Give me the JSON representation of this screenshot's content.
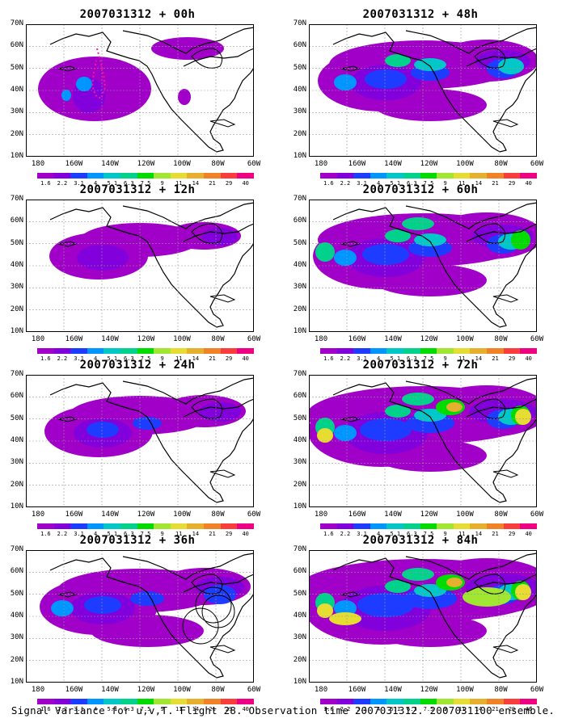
{
  "caption": "Signal Variance for u,v,T. Flight 28. Observation time 2007031312. 2007031100 ensemble.",
  "y_labels": [
    "70N",
    "60N",
    "50N",
    "40N",
    "30N",
    "20N",
    "10N"
  ],
  "x_labels": [
    "180",
    "160W",
    "140W",
    "120W",
    "100W",
    "80W",
    "60W"
  ],
  "colorbar": {
    "labels": [
      "1.6",
      "2.2",
      "3.1",
      "4",
      "5.1",
      "6.3",
      "7.5",
      "9",
      "11",
      "14",
      "21",
      "29",
      "40"
    ],
    "colors": [
      "#a000c8",
      "#8200dc",
      "#1e3cff",
      "#0096ff",
      "#00c8c8",
      "#00d28c",
      "#00dc00",
      "#a0e632",
      "#e6dc32",
      "#e6af2d",
      "#f08228",
      "#fa3c3c",
      "#f00082"
    ]
  },
  "panels": [
    {
      "title": "2007031312 + 00h",
      "lead": "00h",
      "level": 0
    },
    {
      "title": "2007031312 + 48h",
      "lead": "48h",
      "level": 4
    },
    {
      "title": "2007031312 + 12h",
      "lead": "12h",
      "level": 1
    },
    {
      "title": "2007031312 + 60h",
      "lead": "60h",
      "level": 5
    },
    {
      "title": "2007031312 + 24h",
      "lead": "24h",
      "level": 2
    },
    {
      "title": "2007031312 + 72h",
      "lead": "72h",
      "level": 6
    },
    {
      "title": "2007031312 + 36h",
      "lead": "36h",
      "level": 3
    },
    {
      "title": "2007031312 + 84h",
      "lead": "84h",
      "level": 7
    }
  ]
}
